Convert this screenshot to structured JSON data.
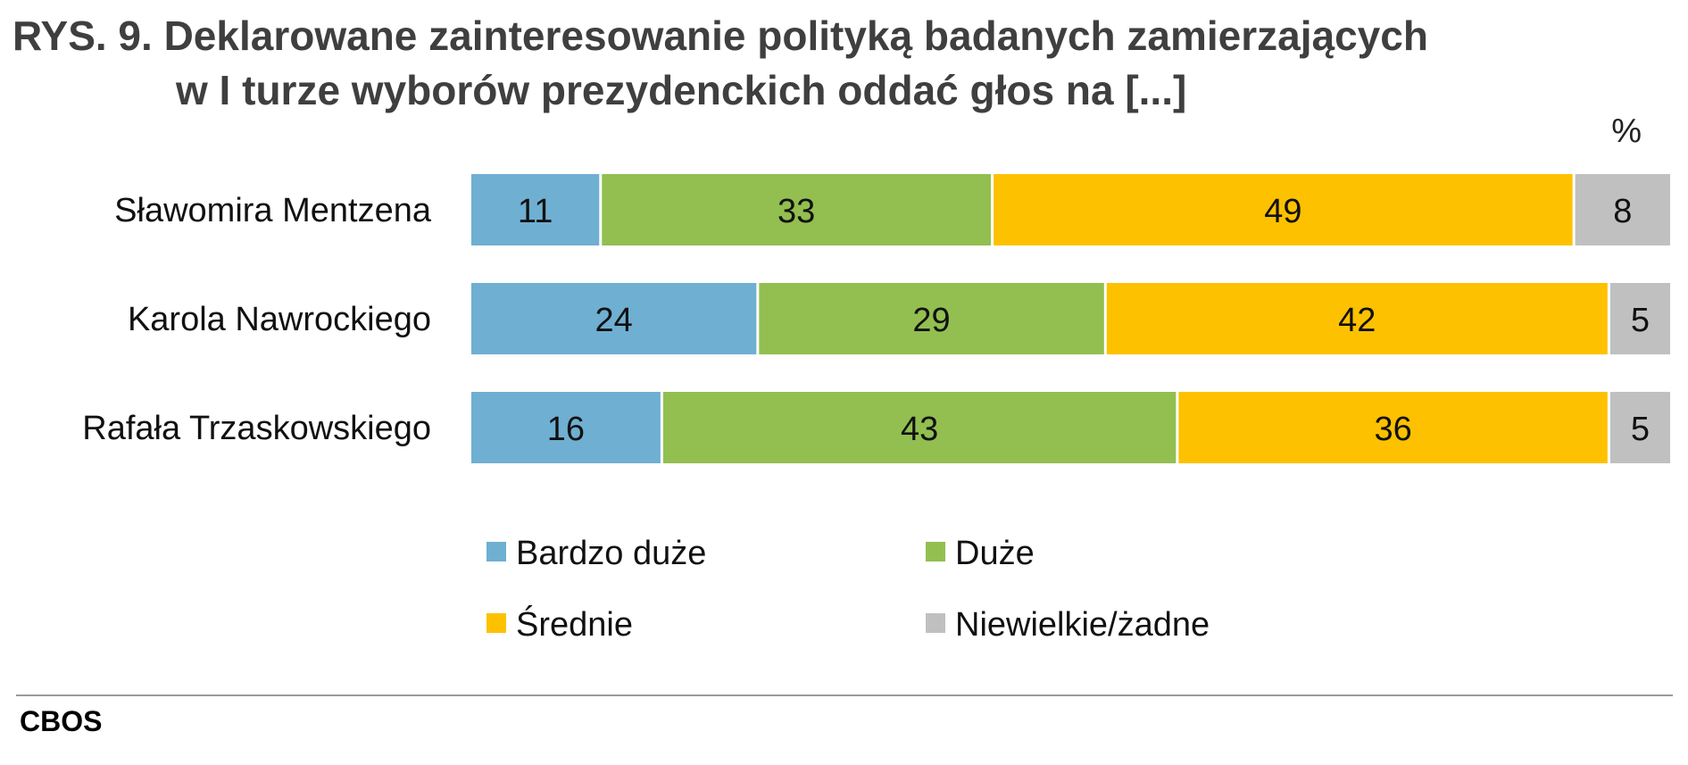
{
  "title": {
    "line1": "RYS. 9. Deklarowane zainteresowanie polityką badanych zamierzających",
    "line2": "w I turze wyborów prezydenckich oddać głos na [...]"
  },
  "unit_label": "%",
  "source": "CBOS",
  "chart_data": {
    "type": "bar",
    "orientation": "horizontal",
    "stacked": true,
    "unit": "%",
    "categories": [
      "Sławomira Mentzena",
      "Karola Nawrockiego",
      "Rafała Trzaskowskiego"
    ],
    "series": [
      {
        "name": "Bardzo duże",
        "color": "#6fafd2",
        "values": [
          11,
          24,
          16
        ]
      },
      {
        "name": "Duże",
        "color": "#92bf50",
        "values": [
          33,
          29,
          43
        ]
      },
      {
        "name": "Średnie",
        "color": "#fdc100",
        "values": [
          49,
          42,
          36
        ]
      },
      {
        "name": "Niewielkie/żadne",
        "color": "#c0c0c0",
        "values": [
          8,
          5,
          5
        ]
      }
    ],
    "grid": false,
    "legend_position": "bottom"
  }
}
